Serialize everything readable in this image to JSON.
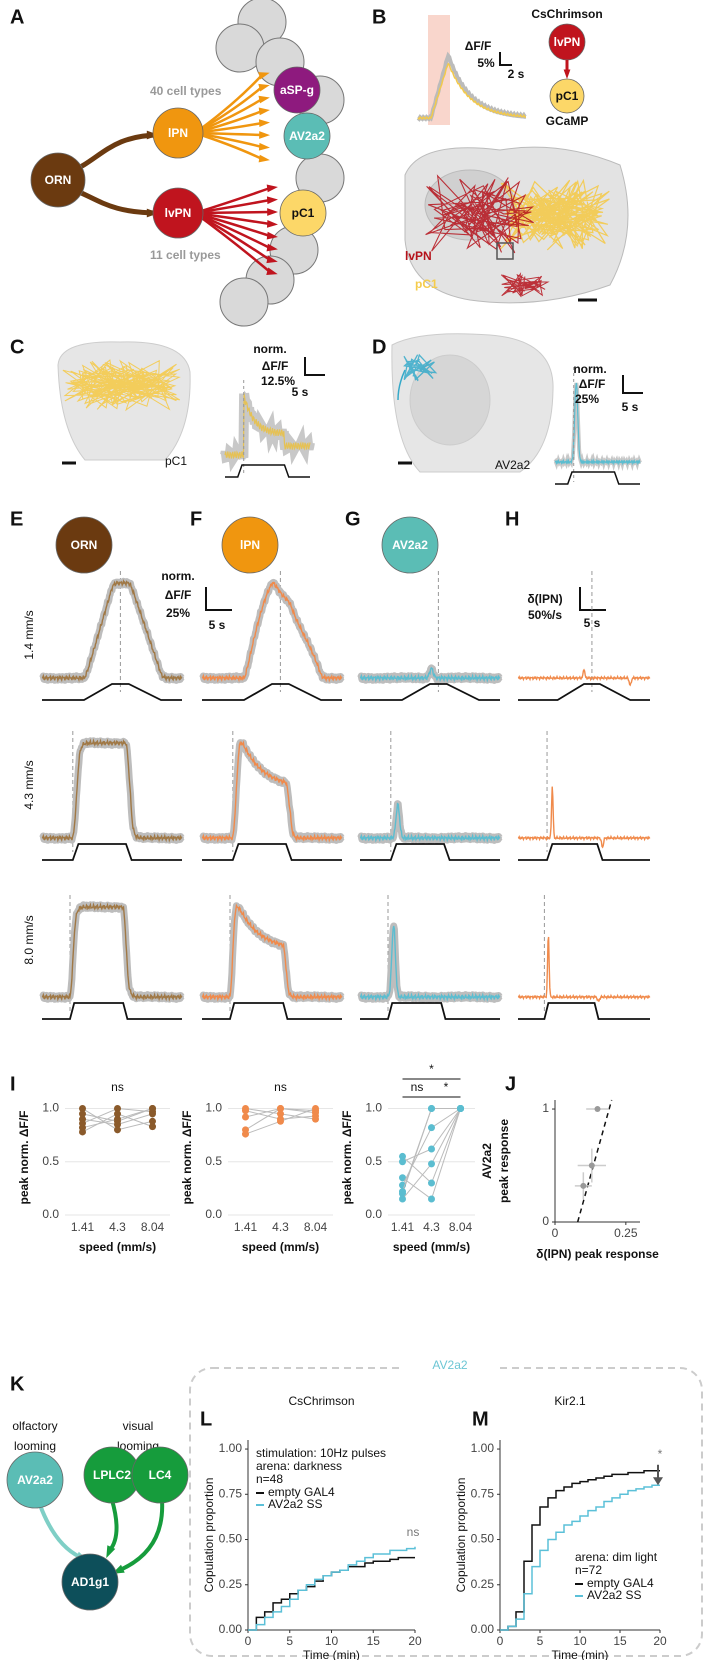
{
  "figure": {
    "A": {
      "label": "A",
      "orn": "ORN",
      "lpn": "lPN",
      "lvpn": "lvPN",
      "aspg": "aSP-g",
      "av2a2": "AV2a2",
      "pc1": "pC1",
      "n40": "40 cell types",
      "n11": "11 cell types"
    },
    "B": {
      "label": "B",
      "dff": "ΔF/F",
      "pct": "5%",
      "sec": "2 s",
      "chrimson": "CsChrimson",
      "lvpn": "lvPN",
      "pc1": "pC1",
      "gcamp": "GCaMP",
      "img_lvpn": "lvPN",
      "img_pc1": "pC1"
    },
    "C": {
      "label": "C",
      "name": "pC1",
      "norm": "norm.",
      "dff": "ΔF/F",
      "pct": "12.5%",
      "sec": "5 s"
    },
    "D": {
      "label": "D",
      "name": "AV2a2",
      "norm": "norm.",
      "dff": "ΔF/F",
      "pct": "25%",
      "sec": "5 s"
    },
    "E": {
      "label": "E",
      "cell": "ORN"
    },
    "F": {
      "label": "F",
      "cell": "lPN",
      "norm": "norm.",
      "dff": "ΔF/F",
      "pct": "25%",
      "sec": "5 s"
    },
    "G": {
      "label": "G",
      "cell": "AV2a2"
    },
    "H": {
      "label": "H",
      "dl": "δ(lPN)",
      "rate": "50%/s",
      "sec": "5 s"
    },
    "speeds": [
      "1.4 mm/s",
      "4.3 mm/s",
      "8.0 mm/s"
    ],
    "I": {
      "label": "I"
    },
    "J": {
      "label": "J"
    },
    "K": {
      "label": "K",
      "olf": [
        "olfactory",
        "looming"
      ],
      "vis": [
        "visual",
        "looming"
      ],
      "nodes": [
        "AV2a2",
        "LPLC2",
        "LC4",
        "AD1g1"
      ]
    },
    "box_title": "AV2a2",
    "L": {
      "label": "L"
    },
    "M": {
      "label": "M"
    }
  },
  "chart_data": [
    {
      "type": "paired",
      "annotations": [
        "ns"
      ],
      "ylabel": "peak norm. ΔF/F",
      "xlabel": "speed (mm/s)",
      "categories": [
        "1.41",
        "4.3",
        "8.04"
      ],
      "ylim": [
        0,
        1.08
      ],
      "yticks": [
        {
          "value": 0,
          "label": "0.0"
        },
        0.5,
        {
          "value": 1,
          "label": "1.0"
        }
      ],
      "grid": true,
      "color": "#8a5a2b",
      "series": [
        {
          "values": [
            0.82,
            0.9,
            1
          ]
        },
        {
          "values": [
            0.9,
            0.85,
            0.95
          ]
        },
        {
          "values": [
            1,
            0.8,
            0.88
          ]
        },
        {
          "values": [
            0.78,
            0.95,
            0.83
          ]
        },
        {
          "values": [
            0.86,
            1,
            0.97
          ]
        },
        {
          "values": [
            0.95,
            0.88,
            1
          ]
        }
      ]
    },
    {
      "type": "paired",
      "annotations": [
        "ns"
      ],
      "ylabel": "peak norm. ΔF/F",
      "xlabel": "speed (mm/s)",
      "categories": [
        "1.41",
        "4.3",
        "8.04"
      ],
      "ylim": [
        0,
        1.08
      ],
      "yticks": [
        {
          "value": 0,
          "label": "0.0"
        },
        0.5,
        {
          "value": 1,
          "label": "1.0"
        }
      ],
      "grid": true,
      "color": "#f08a4b",
      "series": [
        {
          "values": [
            0.98,
            0.9,
            0.93
          ]
        },
        {
          "values": [
            0.8,
            1,
            0.98
          ]
        },
        {
          "values": [
            1,
            0.95,
            0.9
          ]
        },
        {
          "values": [
            0.76,
            0.88,
            1
          ]
        },
        {
          "values": [
            0.92,
            1,
            0.96
          ]
        }
      ]
    },
    {
      "type": "paired",
      "annotations": [
        "*",
        "ns",
        "*"
      ],
      "ylabel": "peak norm. ΔF/F",
      "xlabel": "speed (mm/s)",
      "categories": [
        "1.41",
        "4.3",
        "8.04"
      ],
      "ylim": [
        0,
        1.08
      ],
      "yticks": [
        {
          "value": 0,
          "label": "0.0"
        },
        0.5,
        {
          "value": 1,
          "label": "1.0"
        }
      ],
      "grid": true,
      "color": "#5bbdd0",
      "series": [
        {
          "values": [
            0.5,
            0.62,
            1
          ]
        },
        {
          "values": [
            0.2,
            1,
            1
          ]
        },
        {
          "values": [
            0.35,
            0.15,
            1
          ]
        },
        {
          "values": [
            0.15,
            0.48,
            1
          ]
        },
        {
          "values": [
            0.28,
            0.82,
            1
          ]
        },
        {
          "values": [
            0.55,
            0.3,
            1
          ]
        },
        {
          "values": [
            0.22,
            1,
            1
          ]
        }
      ]
    },
    {
      "type": "scatter",
      "ylabel": [
        "AV2a2",
        "peak response"
      ],
      "xlabel": "δ(lPN) peak response",
      "x": [
        0.1,
        0.13,
        0.15
      ],
      "values": [
        0.32,
        0.5,
        1.0
      ],
      "xerr": [
        0.03,
        0.05,
        0.04
      ],
      "yerr": [
        0.12,
        0.15,
        0.02
      ],
      "xlim": [
        0,
        0.3
      ],
      "xticks": [
        0,
        0.25
      ],
      "ylim": [
        0,
        1.08
      ],
      "yticks": [
        0,
        1
      ],
      "color": "#999999"
    },
    {
      "type": "step",
      "title": "CsChrimson",
      "notes": [
        "stimulation: 10Hz pulses",
        "arena: darkness",
        "n=48"
      ],
      "annotations": [
        "ns"
      ],
      "xlabel": "Time (min)",
      "ylabel": "Copulation proportion",
      "xlim": [
        0,
        20
      ],
      "xticks": [
        0,
        5,
        10,
        15,
        20
      ],
      "ylim": [
        0,
        1.05
      ],
      "yticks": [
        {
          "value": 0,
          "label": "0.00"
        },
        {
          "value": 0.25,
          "label": "0.25"
        },
        {
          "value": 0.5,
          "label": "0.50"
        },
        {
          "value": 0.75,
          "label": "0.75"
        },
        {
          "value": 1,
          "label": "1.00"
        }
      ],
      "x": [
        0,
        1,
        2,
        3,
        4,
        5,
        6,
        7,
        8,
        9,
        10,
        11,
        12,
        13,
        14,
        15,
        16,
        17,
        18,
        19,
        20
      ],
      "series": [
        {
          "name": "empty GAL4",
          "color": "#111111",
          "values": [
            0,
            0.07,
            0.1,
            0.15,
            0.17,
            0.2,
            0.22,
            0.24,
            0.27,
            0.3,
            0.32,
            0.33,
            0.35,
            0.35,
            0.37,
            0.38,
            0.38,
            0.39,
            0.4,
            0.4,
            0.4
          ]
        },
        {
          "name": "AV2a2 SS",
          "color": "#5bc0d8",
          "values": [
            0,
            0.03,
            0.07,
            0.1,
            0.13,
            0.17,
            0.22,
            0.25,
            0.28,
            0.3,
            0.32,
            0.33,
            0.36,
            0.38,
            0.4,
            0.42,
            0.42,
            0.44,
            0.44,
            0.45,
            0.46
          ]
        }
      ]
    },
    {
      "type": "step",
      "title": "Kir2.1",
      "notes": [
        "arena: dim light",
        "n=72"
      ],
      "annotations": [
        "*"
      ],
      "xlabel": "Time (min)",
      "ylabel": "Copulation proportion",
      "xlim": [
        0,
        20
      ],
      "xticks": [
        0,
        5,
        10,
        15,
        20
      ],
      "ylim": [
        0,
        1.05
      ],
      "yticks": [
        {
          "value": 0,
          "label": "0.00"
        },
        {
          "value": 0.25,
          "label": "0.25"
        },
        {
          "value": 0.5,
          "label": "0.50"
        },
        {
          "value": 0.75,
          "label": "0.75"
        },
        {
          "value": 1,
          "label": "1.00"
        }
      ],
      "x": [
        0,
        1,
        2,
        3,
        4,
        5,
        6,
        7,
        8,
        9,
        10,
        11,
        12,
        13,
        14,
        15,
        16,
        17,
        18,
        19,
        20
      ],
      "series": [
        {
          "name": "empty GAL4",
          "color": "#111111",
          "values": [
            0,
            0.02,
            0.1,
            0.38,
            0.58,
            0.68,
            0.73,
            0.77,
            0.79,
            0.81,
            0.82,
            0.83,
            0.84,
            0.85,
            0.86,
            0.86,
            0.87,
            0.87,
            0.88,
            0.88,
            0.88
          ]
        },
        {
          "name": "AV2a2 SS",
          "color": "#5bc0d8",
          "values": [
            0,
            0.02,
            0.06,
            0.2,
            0.35,
            0.44,
            0.5,
            0.54,
            0.58,
            0.6,
            0.63,
            0.66,
            0.68,
            0.71,
            0.73,
            0.75,
            0.77,
            0.78,
            0.79,
            0.8,
            0.8
          ]
        }
      ]
    }
  ]
}
